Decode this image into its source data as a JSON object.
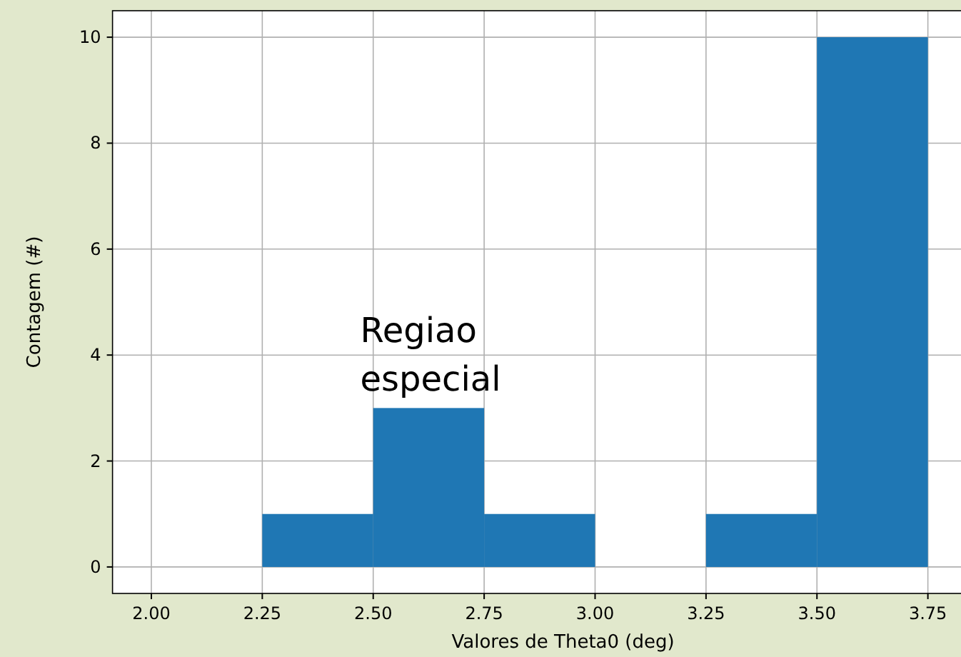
{
  "chart_data": {
    "type": "histogram",
    "xlabel": "Valores de Theta0 (deg)",
    "ylabel": "Contagem (#)",
    "bins": [
      2.0,
      2.25,
      2.5,
      2.75,
      3.0,
      3.25,
      3.5,
      3.75
    ],
    "values": [
      0,
      1,
      3,
      1,
      0,
      1,
      10
    ],
    "color": "#1f77b4",
    "xlim": [
      1.9125,
      3.8375
    ],
    "xticks": [
      {
        "value": 2,
        "label": "2.00"
      },
      {
        "value": 2.25,
        "label": "2.25"
      },
      {
        "value": 2.5,
        "label": "2.50"
      },
      {
        "value": 2.75,
        "label": "2.75"
      },
      {
        "value": 3,
        "label": "3.00"
      },
      {
        "value": 3.25,
        "label": "3.25"
      },
      {
        "value": 3.5,
        "label": "3.50"
      },
      {
        "value": 3.75,
        "label": "3.75"
      }
    ],
    "ylim": [
      -0.5,
      10.5
    ],
    "yticks": [
      0,
      2,
      4,
      6,
      8,
      10
    ],
    "grid": true,
    "annotations": [
      "Regiao\nespecial"
    ]
  }
}
